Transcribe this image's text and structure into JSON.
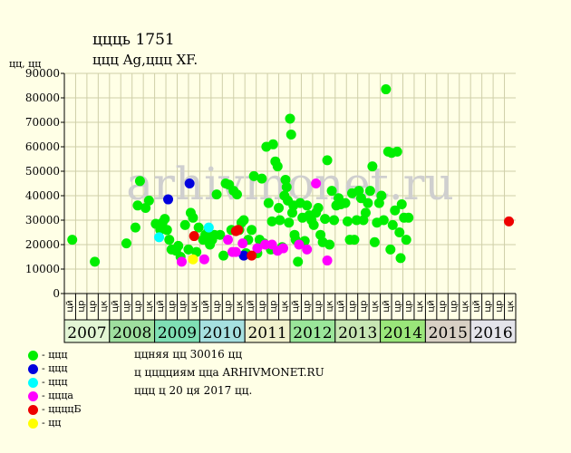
{
  "header": {
    "title": "ццць 1751",
    "subtitle": "ццц Ag,ццц XF.",
    "y_unit": "цц, цц"
  },
  "watermark": "arhivmonet.ru",
  "legend": [
    {
      "label": "- ццц",
      "color": "#00ee00"
    },
    {
      "label": "- ццц",
      "color": "#0000dd"
    },
    {
      "label": "- ццц",
      "color": "#00ffff"
    },
    {
      "label": "- цццa",
      "color": "#ff00ff"
    },
    {
      "label": "- ццццБ",
      "color": "#ee0000"
    },
    {
      "label": "- цц",
      "color": "#ffff00"
    }
  ],
  "notes": [
    "ццняя цц 30016 цц",
    "ц цццциям цца ARHIVMONET.RU",
    "ццц ц 20 ця 2017 цц."
  ],
  "colors": {
    "background": "#ffffe6",
    "grid": "#cfcfa8",
    "watermark": "#cfcfcf"
  },
  "chart_data": {
    "type": "scatter",
    "ylim": [
      0,
      90000
    ],
    "yticks": [
      0,
      10000,
      20000,
      30000,
      40000,
      50000,
      60000,
      70000,
      80000,
      90000
    ],
    "ytick_labels": [
      "0",
      "10000",
      "20000",
      "30000",
      "40000",
      "50000",
      "60000",
      "70000",
      "80000",
      "90000"
    ],
    "grid": true,
    "quarter_labels": [
      "цй",
      "цр",
      "цк"
    ],
    "years": [
      {
        "label": "2007",
        "color": "#e2f5d4"
      },
      {
        "label": "2008",
        "color": "#9fdf9f"
      },
      {
        "label": "2009",
        "color": "#7fdfb4"
      },
      {
        "label": "2010",
        "color": "#a6e0e0"
      },
      {
        "label": "2011",
        "color": "#f0f0cc"
      },
      {
        "label": "2012",
        "color": "#9ae69a"
      },
      {
        "label": "2013",
        "color": "#c7e6b3"
      },
      {
        "label": "2014",
        "color": "#9ae67a"
      },
      {
        "label": "2015",
        "color": "#d8d0c4"
      },
      {
        "label": "2016",
        "color": "#e4e4ea"
      }
    ],
    "x_axis": "quarter index from 2007 Q1 (0) to 2016 Q4 (39)",
    "series": [
      {
        "color": "#00ee00",
        "points": [
          [
            0.2,
            22000
          ],
          [
            2.2,
            13000
          ],
          [
            5.0,
            20500
          ],
          [
            5.8,
            27000
          ],
          [
            6.0,
            36000
          ],
          [
            6.2,
            46000
          ],
          [
            6.7,
            35000
          ],
          [
            7.0,
            38000
          ],
          [
            7.6,
            28500
          ],
          [
            8.0,
            26000
          ],
          [
            8.2,
            29000
          ],
          [
            8.4,
            30500
          ],
          [
            8.6,
            26000
          ],
          [
            8.8,
            22000
          ],
          [
            9.0,
            18000
          ],
          [
            9.4,
            17500
          ],
          [
            9.6,
            19500
          ],
          [
            9.8,
            15000
          ],
          [
            10.2,
            28000
          ],
          [
            10.5,
            18000
          ],
          [
            10.7,
            33000
          ],
          [
            10.9,
            31000
          ],
          [
            11.2,
            17000
          ],
          [
            11.4,
            27000
          ],
          [
            11.8,
            22000
          ],
          [
            12.0,
            24000
          ],
          [
            12.2,
            25000
          ],
          [
            12.4,
            20000
          ],
          [
            12.6,
            22000
          ],
          [
            12.8,
            24000
          ],
          [
            13.0,
            40500
          ],
          [
            13.3,
            24000
          ],
          [
            13.6,
            15500
          ],
          [
            13.8,
            45000
          ],
          [
            14.1,
            44500
          ],
          [
            14.3,
            26000
          ],
          [
            14.5,
            42000
          ],
          [
            14.8,
            40500
          ],
          [
            15.0,
            26000
          ],
          [
            15.2,
            29000
          ],
          [
            15.4,
            30000
          ],
          [
            15.6,
            16500
          ],
          [
            15.8,
            22000
          ],
          [
            16.1,
            26000
          ],
          [
            16.3,
            48000
          ],
          [
            16.6,
            16500
          ],
          [
            16.8,
            22000
          ],
          [
            17.0,
            47000
          ],
          [
            17.2,
            20500
          ],
          [
            17.4,
            60000
          ],
          [
            17.6,
            37000
          ],
          [
            17.8,
            18000
          ],
          [
            17.9,
            29500
          ],
          [
            18.0,
            61000
          ],
          [
            18.2,
            54000
          ],
          [
            18.4,
            52000
          ],
          [
            18.5,
            35000
          ],
          [
            18.6,
            30000
          ],
          [
            18.8,
            19000
          ],
          [
            19.0,
            40000
          ],
          [
            19.1,
            46500
          ],
          [
            19.2,
            43500
          ],
          [
            19.3,
            38000
          ],
          [
            19.4,
            29000
          ],
          [
            19.5,
            71500
          ],
          [
            19.6,
            65000
          ],
          [
            19.7,
            33000
          ],
          [
            19.8,
            36000
          ],
          [
            19.9,
            24000
          ],
          [
            20.0,
            22000
          ],
          [
            20.2,
            13000
          ],
          [
            20.4,
            37000
          ],
          [
            20.6,
            31000
          ],
          [
            20.8,
            21500
          ],
          [
            21.0,
            36000
          ],
          [
            21.2,
            32000
          ],
          [
            21.4,
            30000
          ],
          [
            21.6,
            28000
          ],
          [
            21.8,
            33000
          ],
          [
            22.0,
            35000
          ],
          [
            22.2,
            24000
          ],
          [
            22.4,
            21000
          ],
          [
            22.6,
            30500
          ],
          [
            22.8,
            54500
          ],
          [
            23.0,
            20000
          ],
          [
            23.2,
            42000
          ],
          [
            23.4,
            30000
          ],
          [
            23.6,
            36000
          ],
          [
            23.8,
            39000
          ],
          [
            24.0,
            36500
          ],
          [
            24.4,
            37000
          ],
          [
            24.6,
            29500
          ],
          [
            24.8,
            22000
          ],
          [
            25.0,
            41000
          ],
          [
            25.2,
            22000
          ],
          [
            25.4,
            30000
          ],
          [
            25.6,
            42000
          ],
          [
            25.8,
            39000
          ],
          [
            26.0,
            30000
          ],
          [
            26.2,
            33000
          ],
          [
            26.4,
            37000
          ],
          [
            26.6,
            42000
          ],
          [
            26.8,
            52000
          ],
          [
            27.0,
            21000
          ],
          [
            27.2,
            29000
          ],
          [
            27.4,
            37000
          ],
          [
            27.6,
            40000
          ],
          [
            27.8,
            30000
          ],
          [
            28.0,
            83500
          ],
          [
            28.2,
            58000
          ],
          [
            28.4,
            18000
          ],
          [
            28.6,
            28000
          ],
          [
            28.8,
            34000
          ],
          [
            29.0,
            58000
          ],
          [
            29.2,
            25000
          ],
          [
            29.4,
            36500
          ],
          [
            29.6,
            31000
          ],
          [
            29.8,
            22000
          ],
          [
            30.0,
            31000
          ],
          [
            29.3,
            14500
          ],
          [
            28.5,
            57500
          ]
        ]
      },
      {
        "color": "#0000dd",
        "points": [
          [
            8.7,
            38500
          ],
          [
            10.6,
            45000
          ],
          [
            15.4,
            15500
          ]
        ]
      },
      {
        "color": "#00ffff",
        "points": [
          [
            7.9,
            23000
          ],
          [
            12.3,
            27000
          ]
        ]
      },
      {
        "color": "#ff00ff",
        "points": [
          [
            9.9,
            13000
          ],
          [
            11.9,
            14000
          ],
          [
            14.0,
            22000
          ],
          [
            14.4,
            17000
          ],
          [
            14.7,
            17000
          ],
          [
            15.3,
            20500
          ],
          [
            16.6,
            18500
          ],
          [
            17.3,
            20000
          ],
          [
            17.9,
            20000
          ],
          [
            18.4,
            17500
          ],
          [
            18.9,
            18500
          ],
          [
            20.3,
            20000
          ],
          [
            21.0,
            18000
          ],
          [
            21.8,
            45000
          ],
          [
            22.8,
            13500
          ]
        ]
      },
      {
        "color": "#ee0000",
        "points": [
          [
            11.0,
            23500
          ],
          [
            14.7,
            25500
          ],
          [
            14.9,
            26000
          ],
          [
            16.1,
            15500
          ],
          [
            38.9,
            29500
          ]
        ]
      },
      {
        "color": "#ffff00",
        "points": [
          [
            10.9,
            14000
          ]
        ]
      }
    ]
  }
}
